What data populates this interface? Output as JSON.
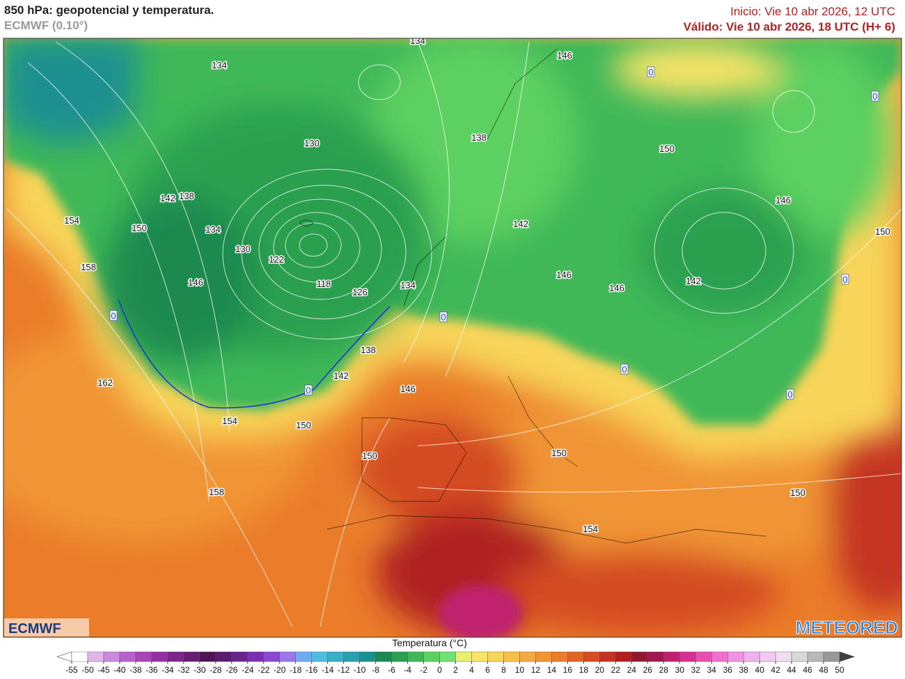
{
  "header": {
    "title": "850 hPa: geopotencial y temperatura.",
    "model": "ECMWF (0.10°)",
    "init": "Inicio: Vie 10 abr 2026, 12 UTC",
    "valid": "Válido: Vie 10 abr 2026, 18 UTC (H+ 6)"
  },
  "map": {
    "contour_labels": [
      134,
      134,
      146,
      0,
      0,
      138,
      130,
      150,
      142,
      138,
      146,
      154,
      150,
      134,
      142,
      150,
      130,
      122,
      158,
      146,
      146,
      118,
      134,
      142,
      146,
      126,
      0,
      0,
      0,
      138,
      0,
      142,
      162,
      146,
      0,
      0,
      154,
      150,
      150,
      150,
      150,
      158,
      154
    ]
  },
  "logos": {
    "left": "ECMWF",
    "right": "METEORED"
  },
  "colorbar": {
    "label": "Temperatura (°C)",
    "ticks": [
      -55,
      -50,
      -45,
      -40,
      -38,
      -36,
      -34,
      -32,
      -30,
      -28,
      -26,
      -24,
      -22,
      -20,
      -18,
      -16,
      -14,
      -12,
      -10,
      -8,
      -6,
      -4,
      -2,
      0,
      2,
      4,
      6,
      8,
      10,
      12,
      14,
      16,
      18,
      20,
      22,
      24,
      26,
      28,
      30,
      32,
      34,
      36,
      38,
      40,
      42,
      44,
      46,
      48,
      50
    ],
    "colors": [
      "#ffffff",
      "#e1b4ec",
      "#cc88dd",
      "#b860cc",
      "#a844b8",
      "#9430a4",
      "#7e248c",
      "#681c74",
      "#4e1456",
      "#5a1a70",
      "#6a2490",
      "#7a30b0",
      "#8a48d0",
      "#9a78e8",
      "#70aaf0",
      "#50bce0",
      "#38b0c8",
      "#28a0b0",
      "#1a9090",
      "#1a8a50",
      "#2aa050",
      "#40b858",
      "#5cd060",
      "#70e070",
      "#e8f070",
      "#f8e468",
      "#f8d458",
      "#f8c048",
      "#f4aa40",
      "#f09434",
      "#ea7c2a",
      "#e06424",
      "#d44c20",
      "#c43420",
      "#b02020",
      "#901830",
      "#a01850",
      "#c02070",
      "#d83090",
      "#e850b0",
      "#f070d0",
      "#f090e0",
      "#f0b0f0",
      "#f0c8f0",
      "#f0dcf0",
      "#d8d8d8",
      "#b8b8b8",
      "#989898",
      "#707070"
    ]
  }
}
